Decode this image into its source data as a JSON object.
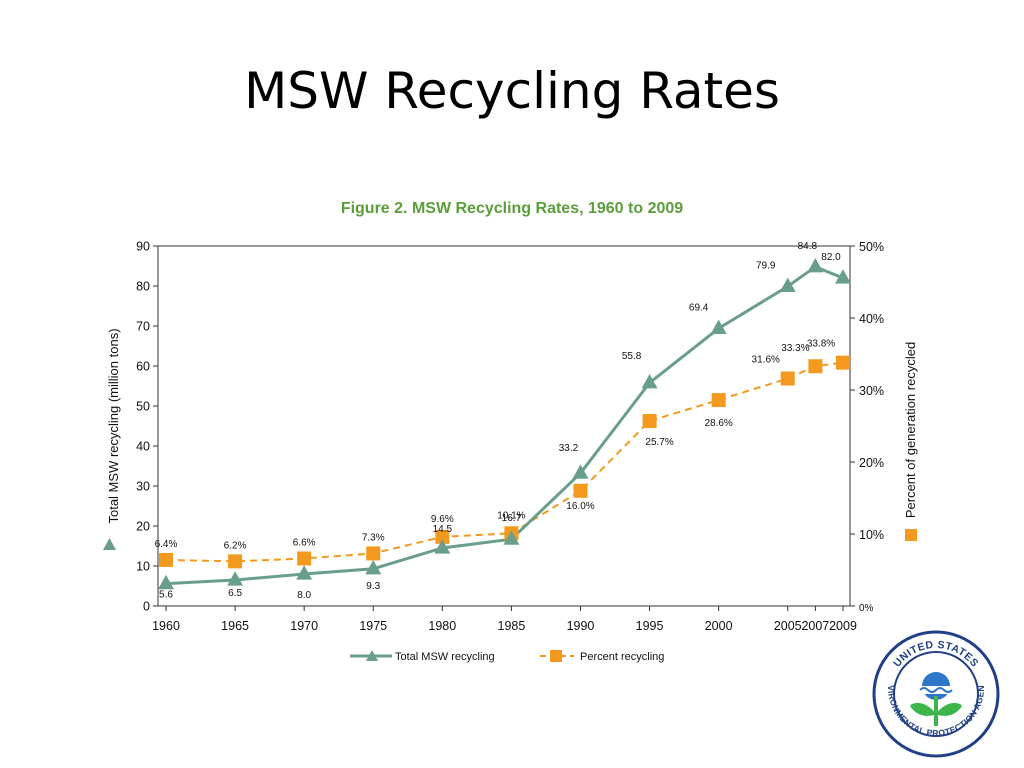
{
  "slide": {
    "title": "MSW Recycling Rates"
  },
  "chart_data": {
    "type": "line",
    "title": "Figure 2. MSW Recycling Rates, 1960 to 2009",
    "x": [
      1960,
      1965,
      1970,
      1975,
      1980,
      1985,
      1990,
      1995,
      2000,
      2005,
      2007,
      2009
    ],
    "xticks": [
      "1960",
      "1965",
      "1970",
      "1975",
      "1980",
      "1985",
      "1990",
      "1995",
      "2000",
      "2005",
      "2007",
      "2009"
    ],
    "ylabel": "Total MSW recycling (million tons)",
    "ylim": [
      0,
      90
    ],
    "yticks": [
      "0",
      "10",
      "20",
      "30",
      "40",
      "50",
      "60",
      "70",
      "80",
      "90"
    ],
    "y2label": "Percent of generation recycled",
    "y2lim": [
      0,
      50
    ],
    "y2ticks": [
      "0%",
      "10%",
      "20%",
      "30%",
      "40%",
      "50%"
    ],
    "series": [
      {
        "name": "Total MSW recycling",
        "axis": "left",
        "marker": "triangle",
        "color": "#6a9e8c",
        "values": [
          5.6,
          6.5,
          8.0,
          9.3,
          14.5,
          16.7,
          33.2,
          55.8,
          69.4,
          79.9,
          84.8,
          82.0
        ],
        "labels": [
          "5.6",
          "6.5",
          "8.0",
          "9.3",
          "14.5",
          "16.7",
          "33.2",
          "55.8",
          "69.4",
          "79.9",
          "84.8",
          "82.0"
        ]
      },
      {
        "name": "Percent recycling",
        "axis": "right",
        "marker": "square",
        "color": "#f39a1e",
        "values": [
          6.4,
          6.2,
          6.6,
          7.3,
          9.6,
          10.1,
          16.0,
          25.7,
          28.6,
          31.6,
          33.3,
          33.8
        ],
        "labels": [
          "6.4%",
          "6.2%",
          "6.6%",
          "7.3%",
          "9.6%",
          "10.1%",
          "16.0%",
          "25.7%",
          "28.6%",
          "31.6%",
          "33.3%",
          "33.8%"
        ]
      }
    ],
    "legend": {
      "position": "bottom"
    },
    "grid": false
  },
  "logo": {
    "text_top": "UNITED STATES",
    "text_left": "ENVIRONMENTAL",
    "text_bottom": "PROTECTION AGENCY",
    "colors": {
      "ring": "#1f3f86",
      "sky": "#2d77c9",
      "plant": "#3db54a"
    }
  }
}
